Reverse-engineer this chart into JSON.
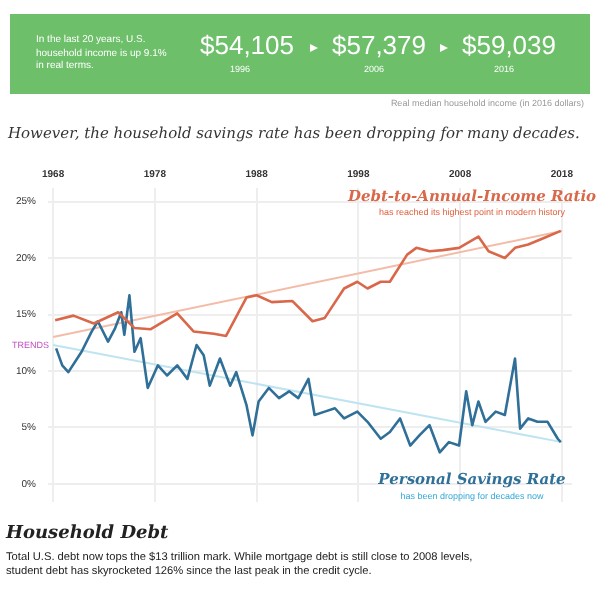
{
  "chart_data": {
    "type": "line",
    "title": "However, the household savings rate has been dropping for many decades.",
    "annotations": [
      "In the last 20 years, U.S. household income is up 9.1% in real terms.",
      "$54,105",
      "1996",
      "$57,379",
      "2006",
      "$59,039",
      "2016",
      "Real median household income (in 2016 dollars)",
      "TRENDS",
      "has reached its highest point in modern history",
      "has been dropping for decades now",
      "Household Debt",
      "Total U.S. debt now tops the $13 trillion mark. While mortgage debt is still close to 2008 levels, student debt has skyrocketed 126% since the last peak in the credit cycle."
    ],
    "xlim": [
      1967.5,
      2019
    ],
    "xticks": [
      1968,
      1978,
      1988,
      1998,
      2008,
      2018
    ],
    "ylim": [
      -1.6,
      26.2
    ],
    "yticks": [
      {
        "value": 0,
        "label": "0%"
      },
      {
        "value": 5,
        "label": "5%"
      },
      {
        "value": 10,
        "label": "10%"
      },
      {
        "value": 15,
        "label": "15%"
      },
      {
        "value": 20,
        "label": "20%"
      },
      {
        "value": 25,
        "label": "25%"
      }
    ],
    "grid": true,
    "legend": false,
    "marker": "none",
    "series": [
      {
        "name": "Debt-to-Annual-Income Ratio",
        "color": "#d9684a",
        "x": [
          1968.2,
          1970,
          1972,
          1974.4,
          1976,
          1977.6,
          1980.2,
          1981.8,
          1983.8,
          1985,
          1987,
          1988,
          1989.5,
          1991.5,
          1993.5,
          1994.7,
          1996.6,
          1997.9,
          1998.9,
          2000.2,
          2001.1,
          2002.8,
          2003.7,
          2005,
          2006.3,
          2007.9,
          2009.8,
          2010.8,
          2012.4,
          2013.4,
          2014.7,
          2016.3,
          2017.9
        ],
        "values": [
          14.5,
          14.9,
          14.2,
          15.2,
          13.8,
          13.7,
          15.1,
          13.5,
          13.3,
          13.1,
          16.5,
          16.7,
          16.1,
          16.2,
          14.4,
          14.7,
          17.3,
          17.9,
          17.3,
          17.9,
          17.9,
          20.3,
          20.9,
          20.6,
          20.7,
          20.9,
          21.9,
          20.6,
          20.0,
          20.9,
          21.2,
          21.8,
          22.4
        ]
      },
      {
        "name": "Personal Savings Rate",
        "color": "#2f6f98",
        "x": [
          1968.3,
          1968.9,
          1969.5,
          1970.8,
          1971.8,
          1972.4,
          1973.4,
          1974.1,
          1974.7,
          1975,
          1975.5,
          1976,
          1976.6,
          1977.3,
          1978.3,
          1979.2,
          1980.2,
          1981.2,
          1982.1,
          1982.8,
          1983.4,
          1984.4,
          1985.4,
          1986,
          1987,
          1987.6,
          1988.2,
          1989.2,
          1990.2,
          1991.2,
          1992.1,
          1993.1,
          1993.7,
          1994.7,
          1995.7,
          1996.6,
          1997.9,
          1998.9,
          2000.2,
          2001.1,
          2002.1,
          2003.1,
          2004,
          2005,
          2006,
          2006.9,
          2007.9,
          2008.6,
          2009.2,
          2009.8,
          2010.5,
          2011.5,
          2012.4,
          2013.4,
          2013.9,
          2014.7,
          2015.6,
          2016.6,
          2017.6,
          2017.9
        ],
        "values": [
          12.0,
          10.5,
          9.9,
          11.7,
          13.5,
          14.4,
          12.6,
          13.8,
          15.2,
          13.2,
          16.7,
          11.7,
          12.9,
          8.5,
          10.5,
          9.6,
          10.5,
          9.3,
          12.3,
          11.4,
          8.7,
          11.1,
          8.7,
          9.9,
          7.0,
          4.3,
          7.3,
          8.5,
          7.6,
          8.2,
          7.6,
          9.3,
          6.1,
          6.4,
          6.7,
          5.8,
          6.4,
          5.5,
          4.0,
          4.6,
          5.8,
          3.4,
          4.3,
          5.2,
          2.8,
          3.7,
          3.4,
          8.2,
          5.2,
          7.3,
          5.5,
          6.4,
          6.1,
          11.1,
          4.9,
          5.8,
          5.5,
          5.5,
          4.0,
          3.7
        ]
      },
      {
        "type": "line",
        "color": "#f4bca8",
        "x": [
          1968,
          2018
        ],
        "values": [
          13.0,
          22.4
        ]
      },
      {
        "type": "line",
        "color": "#bfe4f1",
        "x": [
          1968,
          2018
        ],
        "values": [
          12.3,
          3.7
        ]
      }
    ]
  }
}
